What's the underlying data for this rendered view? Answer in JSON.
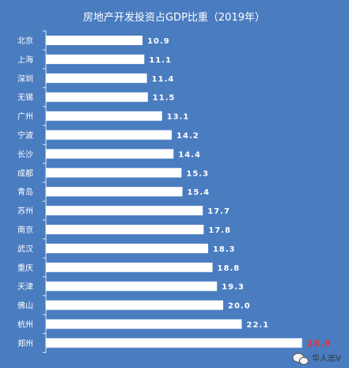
{
  "chart_data": {
    "type": "bar",
    "orientation": "horizontal",
    "title": "房地产开发投资占GDP比重（2019年）",
    "categories": [
      "北京",
      "上海",
      "深圳",
      "无锡",
      "广州",
      "宁波",
      "长沙",
      "成都",
      "青岛",
      "苏州",
      "南京",
      "武汉",
      "重庆",
      "天津",
      "佛山",
      "杭州",
      "郑州"
    ],
    "values": [
      10.9,
      11.1,
      11.4,
      11.5,
      13.1,
      14.2,
      14.4,
      15.3,
      15.4,
      17.7,
      17.8,
      18.3,
      18.8,
      19.3,
      20.0,
      22.1,
      28.9
    ],
    "value_labels": [
      "10.9",
      "11.1",
      "11.4",
      "11.5",
      "13.1",
      "14.2",
      "14.4",
      "15.3",
      "15.4",
      "17.7",
      "17.8",
      "18.3",
      "18.8",
      "19.3",
      "20.0",
      "22.1",
      "28.9"
    ],
    "highlight_index": 16,
    "xlim": [
      0,
      30
    ],
    "grid": false,
    "colors": {
      "background": "#4a7cc0",
      "bar": "#ffffff",
      "text": "#ffffff",
      "highlight_label": "#e8323a"
    }
  },
  "watermark": {
    "text": "华人志V",
    "icon": "wechat-icon"
  }
}
